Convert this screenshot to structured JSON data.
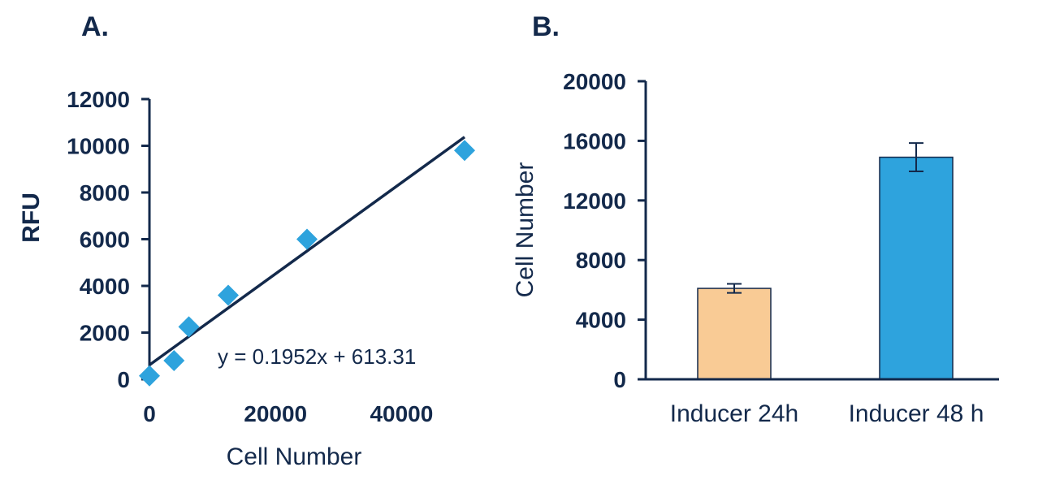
{
  "chart_data": [
    {
      "panel_label": "A.",
      "type": "scatter",
      "xlabel": "Cell Number",
      "ylabel": "RFU",
      "xlim": [
        0,
        50000
      ],
      "ylim": [
        0,
        12000
      ],
      "xticks": [
        0,
        20000,
        40000
      ],
      "yticks": [
        0,
        2000,
        4000,
        6000,
        8000,
        10000,
        12000
      ],
      "marker_color": "#2ea3dd",
      "line_color": "#13294b",
      "points": [
        {
          "x": 0,
          "y": 150
        },
        {
          "x": 3900,
          "y": 800
        },
        {
          "x": 6250,
          "y": 2250
        },
        {
          "x": 12500,
          "y": 3600
        },
        {
          "x": 25000,
          "y": 6000
        },
        {
          "x": 50000,
          "y": 9800
        }
      ],
      "trendline": {
        "slope": 0.1952,
        "intercept": 613.31,
        "x_range": [
          0,
          50000
        ]
      },
      "annotation": "y = 0.1952x + 613.31"
    },
    {
      "panel_label": "B.",
      "type": "bar",
      "ylabel": "Cell Number",
      "ylim": [
        0,
        20000
      ],
      "yticks": [
        0,
        4000,
        8000,
        12000,
        16000,
        20000
      ],
      "categories": [
        "Inducer 24h",
        "Inducer 48 h"
      ],
      "values": [
        6100,
        14900
      ],
      "errors": [
        300,
        950
      ],
      "colors": [
        "#f9cb95",
        "#2ea3dd"
      ]
    }
  ]
}
